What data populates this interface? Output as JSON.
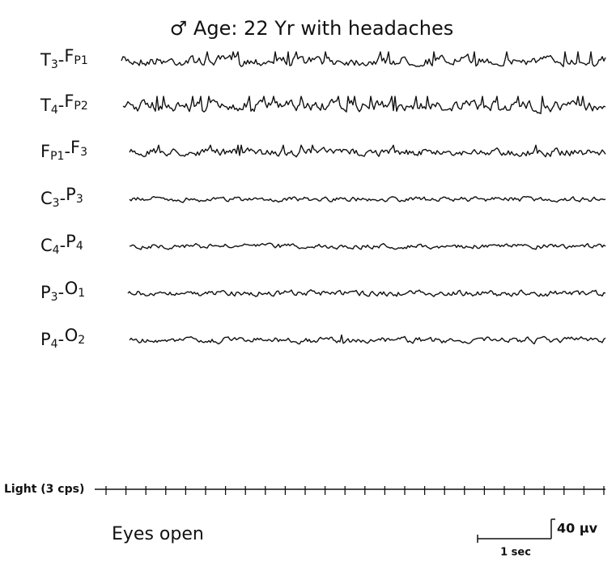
{
  "title": "♂ Age: 22 Yr with headaches",
  "separator": "-",
  "channels": [
    {
      "a": "T",
      "a_sub": "3",
      "b": "F",
      "b_sub": "P1"
    },
    {
      "a": "T",
      "a_sub": "4",
      "b": "F",
      "b_sub": "P2"
    },
    {
      "a": "F",
      "a_sub": "P1",
      "b": "F",
      "b_sub": "3"
    },
    {
      "a": "C",
      "a_sub": "3",
      "b": "P",
      "b_sub": "3"
    },
    {
      "a": "C",
      "a_sub": "4",
      "b": "P",
      "b_sub": "4"
    },
    {
      "a": "P",
      "a_sub": "3",
      "b": "O",
      "b_sub": "1"
    },
    {
      "a": "P",
      "a_sub": "4",
      "b": "O",
      "b_sub": "2"
    }
  ],
  "light_label": "Light (3 cps)",
  "condition": "Eyes open",
  "scale_amplitude": "40 µv",
  "scale_time": "1 sec"
}
